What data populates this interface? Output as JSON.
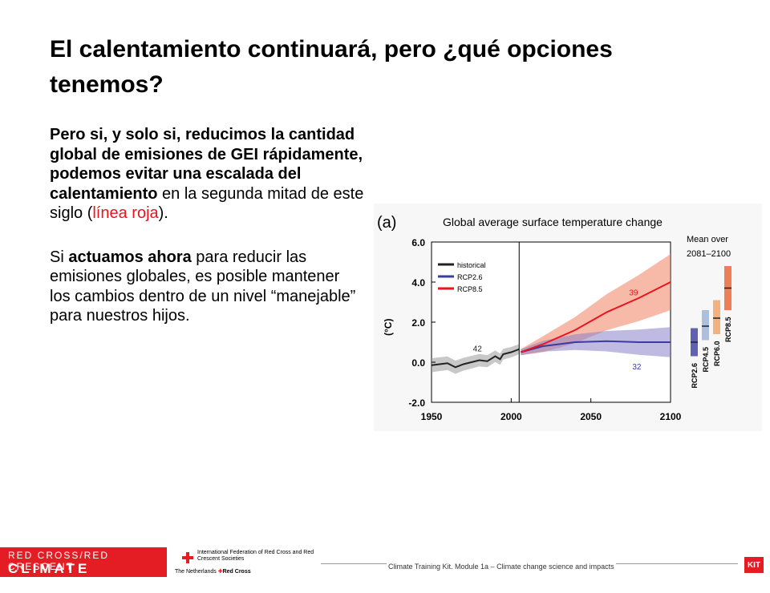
{
  "slide": {
    "title": "El calentamiento continuará, pero ¿qué opciones tenemos?",
    "para1": {
      "bold": "Pero si, y solo si, reducimos la cantidad global de emisiones de GEI rápidamente, podemos evitar una escalada del calentamiento",
      "rest": " en la segunda mitad de este siglo (",
      "red": "línea roja",
      "end": ")."
    },
    "para2": {
      "pre": "Si ",
      "bold": "actuamos ahora",
      "rest": " para reducir las emisiones globales, es posible mantener los cambios dentro de un nivel “manejable” para nuestros hijos."
    }
  },
  "footer": {
    "logo_line1": "RED CROSS/RED CRESCENT",
    "logo_line2": "CLIMATE CENTRE",
    "ifrc_text": "International Federation of Red Cross and Red Crescent Societies",
    "nl_text": "The Netherlands",
    "nl_rc": "Red Cross",
    "module_text": "Climate Training Kit. Module 1a –  Climate change science and impacts",
    "kit": "KIT"
  },
  "chart_data": {
    "type": "line",
    "panel_label": "(a)",
    "title": "Global average surface temperature change",
    "ylabel": "(°C)",
    "xlim": [
      1950,
      2100
    ],
    "ylim": [
      -2.0,
      6.0
    ],
    "x_ticks": [
      "1950",
      "2000",
      "2050",
      "2100"
    ],
    "y_ticks": [
      "6.0",
      "4.0",
      "2.0",
      "0.0",
      "-2.0"
    ],
    "legend": [
      "historical",
      "RCP2.6",
      "RCP8.5"
    ],
    "annotations": {
      "historical_models": "42",
      "rcp85_models": "39",
      "rcp26_models": "32"
    },
    "series": [
      {
        "name": "historical",
        "color": "#222222",
        "x": [
          1950,
          1960,
          1965,
          1970,
          1980,
          1985,
          1990,
          1993,
          1995,
          2000,
          2005
        ],
        "y": [
          -0.15,
          -0.05,
          -0.25,
          -0.1,
          0.1,
          0.05,
          0.3,
          0.15,
          0.4,
          0.5,
          0.65
        ]
      },
      {
        "name": "RCP2.6",
        "color": "#3b3ba0",
        "x": [
          2006,
          2020,
          2040,
          2060,
          2080,
          2100
        ],
        "y": [
          0.5,
          0.8,
          1.0,
          1.05,
          1.0,
          1.0
        ]
      },
      {
        "name": "RCP8.5",
        "color": "#e8141e",
        "x": [
          2006,
          2020,
          2040,
          2060,
          2080,
          2100
        ],
        "y": [
          0.5,
          0.9,
          1.6,
          2.5,
          3.2,
          4.0
        ]
      }
    ],
    "mean_over_label": "Mean over\n2081–2100",
    "bars": [
      {
        "name": "RCP2.6",
        "color": "#3b3ba0",
        "low": 0.3,
        "high": 1.7,
        "mean": 1.0
      },
      {
        "name": "RCP4.5",
        "color": "#9ab0d8",
        "low": 1.1,
        "high": 2.6,
        "mean": 1.8
      },
      {
        "name": "RCP6.0",
        "color": "#f0a060",
        "low": 1.4,
        "high": 3.1,
        "mean": 2.2
      },
      {
        "name": "RCP8.5",
        "color": "#e8602c",
        "low": 2.6,
        "high": 4.8,
        "mean": 3.7
      }
    ]
  }
}
